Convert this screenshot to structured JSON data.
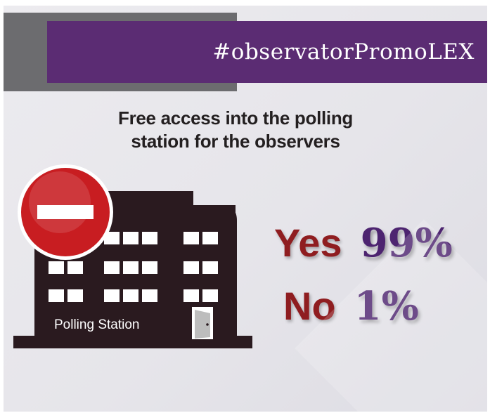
{
  "banner": {
    "hashtag": "#observatorPromoLEX"
  },
  "headline": {
    "line1": "Free access into the polling",
    "line2": "station for the observers"
  },
  "building": {
    "label": "Polling Station",
    "icon": "polling-station-building-icon"
  },
  "stop_sign": {
    "icon": "no-entry-icon"
  },
  "results": [
    {
      "label": "Yes",
      "percent": "99%"
    },
    {
      "label": "No",
      "percent": "1%"
    }
  ],
  "colors": {
    "banner_purple": "#5b2c73",
    "answer_red": "#8f1d20",
    "percent_purple": "#4d2470",
    "building_dark": "#2a1a1f",
    "stop_red": "#c81d21"
  }
}
